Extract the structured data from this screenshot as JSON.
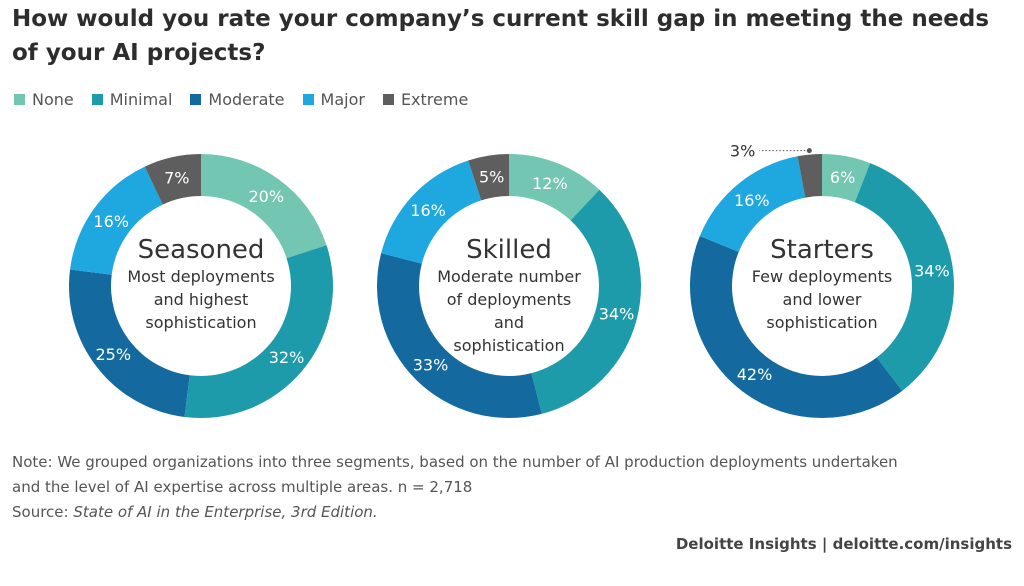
{
  "title": "How would you rate your company’s current skill gap in meeting the needs of your AI projects?",
  "legend": [
    {
      "label": "None",
      "color": "#73c6b1"
    },
    {
      "label": "Minimal",
      "color": "#1e9bab"
    },
    {
      "label": "Moderate",
      "color": "#146a9e"
    },
    {
      "label": "Major",
      "color": "#1fa7e0"
    },
    {
      "label": "Extreme",
      "color": "#5e5e5e"
    }
  ],
  "chart_data": [
    {
      "type": "pie",
      "style": "donut",
      "segment": "Seasoned",
      "subtitle_lines": [
        "Most deployments",
        "and highest",
        "sophistication"
      ],
      "categories": [
        "None",
        "Minimal",
        "Moderate",
        "Major",
        "Extreme"
      ],
      "values": [
        20,
        32,
        25,
        16,
        7
      ],
      "labels": [
        "20%",
        "32%",
        "25%",
        "16%",
        "7%"
      ]
    },
    {
      "type": "pie",
      "style": "donut",
      "segment": "Skilled",
      "subtitle_lines": [
        "Moderate number",
        "of deployments",
        "and",
        "sophistication"
      ],
      "categories": [
        "None",
        "Minimal",
        "Moderate",
        "Major",
        "Extreme"
      ],
      "values": [
        12,
        34,
        33,
        16,
        5
      ],
      "labels": [
        "12%",
        "34%",
        "33%",
        "16%",
        "5%"
      ]
    },
    {
      "type": "pie",
      "style": "donut",
      "segment": "Starters",
      "subtitle_lines": [
        "Few deployments",
        "and lower",
        "sophistication"
      ],
      "categories": [
        "None",
        "Minimal",
        "Moderate",
        "Major",
        "Extreme"
      ],
      "values": [
        6,
        34,
        42,
        16,
        3
      ],
      "labels": [
        "6%",
        "34%",
        "42%",
        "16%",
        "3%"
      ],
      "callout_label": "3%"
    }
  ],
  "note": {
    "line1": "Note: We grouped organizations into three segments, based on the number of AI production deployments undertaken",
    "line2": "and the level of AI expertise across multiple areas. n = 2,718",
    "source_prefix": "Source: ",
    "source_title": "State of AI in the Enterprise, 3rd Edition."
  },
  "footer": "Deloitte Insights | deloitte.com/insights"
}
